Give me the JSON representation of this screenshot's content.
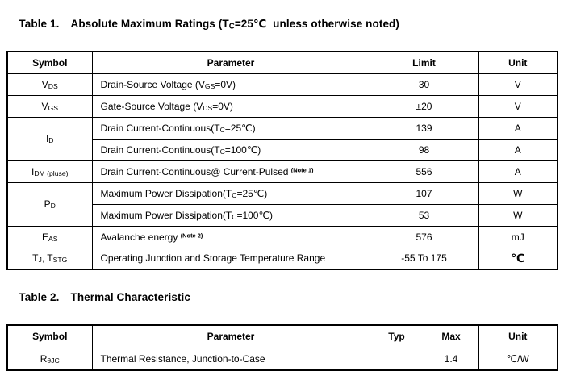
{
  "page": {
    "background": "#ffffff",
    "text_color": "#000000",
    "border_color": "#000000"
  },
  "table1": {
    "title_label": "Table 1.",
    "title_text": "Absolute Maximum Ratings (T~C~=25℃  unless otherwise noted)",
    "headers": [
      "Symbol",
      "Parameter",
      "Limit",
      "Unit"
    ],
    "rows": [
      {
        "symbol": "V~DS~",
        "parameter": "Drain-Source Voltage (V~GS~=0V)",
        "limit": "30",
        "unit": "V"
      },
      {
        "symbol": "V~GS~",
        "parameter": "Gate-Source Voltage (V~DS~=0V)",
        "limit": "±20",
        "unit": "V"
      },
      {
        "symbol": "I~D~",
        "parameter": "Drain Current-Continuous(T~C~=25℃)",
        "limit": "139",
        "unit": "A"
      },
      {
        "symbol": null,
        "parameter": "Drain Current-Continuous(T~C~=100℃)",
        "limit": "98",
        "unit": "A"
      },
      {
        "symbol": "I~DM (pluse)~",
        "parameter": "Drain Current-Continuous@ Current-Pulsed ^(Note 1)^",
        "limit": "556",
        "unit": "A"
      },
      {
        "symbol": "P~D~",
        "parameter": "Maximum Power Dissipation(T~C~=25℃)",
        "limit": "107",
        "unit": "W"
      },
      {
        "symbol": null,
        "parameter": "Maximum Power Dissipation(T~C~=100℃)",
        "limit": "53",
        "unit": "W"
      },
      {
        "symbol": "E~AS~",
        "parameter": "Avalanche energy ^(Note 2)^",
        "limit": "576",
        "unit": "mJ"
      },
      {
        "symbol": "T~J~, T~STG~",
        "parameter": "Operating Junction and Storage Temperature Range",
        "limit": "-55 To 175",
        "unit": "℃"
      }
    ]
  },
  "table2": {
    "title_label": "Table 2.",
    "title_text": "Thermal Characteristic",
    "headers": [
      "Symbol",
      "Parameter",
      "Typ",
      "Max",
      "Unit"
    ],
    "rows": [
      {
        "symbol": "R~θJC~",
        "parameter": "Thermal Resistance, Junction-to-Case",
        "typ": "",
        "max": "1.4",
        "unit": "℃/W"
      }
    ]
  }
}
